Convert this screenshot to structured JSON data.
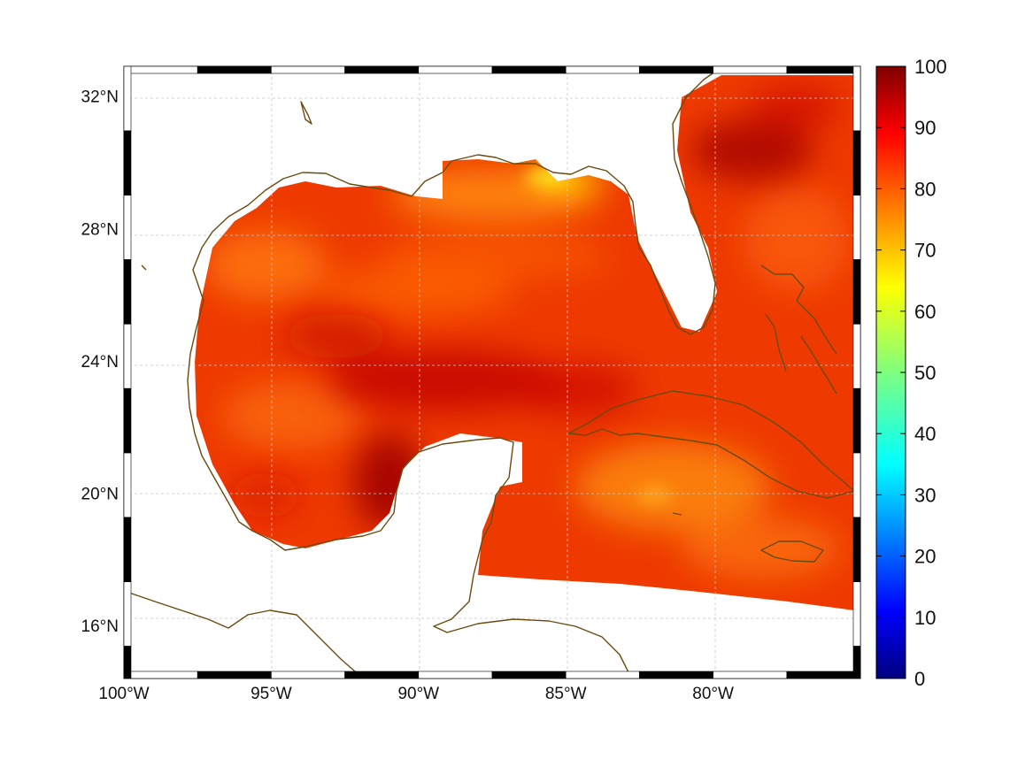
{
  "map": {
    "lon_ticks": [
      {
        "value": -100,
        "label": "100°W"
      },
      {
        "value": -95,
        "label": "95°W"
      },
      {
        "value": -90,
        "label": "90°W"
      },
      {
        "value": -85,
        "label": "85°W"
      },
      {
        "value": -80,
        "label": "80°W"
      }
    ],
    "lat_ticks": [
      {
        "value": 32,
        "label": "32°N"
      },
      {
        "value": 28,
        "label": "28°N"
      },
      {
        "value": 24,
        "label": "24°N"
      },
      {
        "value": 20,
        "label": "20°N"
      },
      {
        "value": 16,
        "label": "16°N"
      }
    ],
    "lon_range": [
      -100,
      -75
    ],
    "lat_range": [
      14.4,
      32.9
    ],
    "grid": true,
    "frame_style": "black-and-white checkered border"
  },
  "colorbar": {
    "range": [
      0,
      100
    ],
    "ticks": [
      "0",
      "10",
      "20",
      "30",
      "40",
      "50",
      "60",
      "70",
      "80",
      "90",
      "100"
    ],
    "colormap": "jet",
    "colors": [
      "#00007f",
      "#0000ff",
      "#007fff",
      "#00ffff",
      "#7fff7f",
      "#ffff00",
      "#ff7f00",
      "#ff0000",
      "#7f0000"
    ]
  },
  "field": {
    "typical_range": [
      65,
      97
    ],
    "high_areas": [
      "Bay of Campeche",
      "central Gulf of Mexico",
      "Atlantic off the southeast US coast"
    ],
    "low_areas": [
      "Florida panhandle coast",
      "northern Caribbean south of Cuba"
    ]
  },
  "coastline_color": "#6b4a10"
}
